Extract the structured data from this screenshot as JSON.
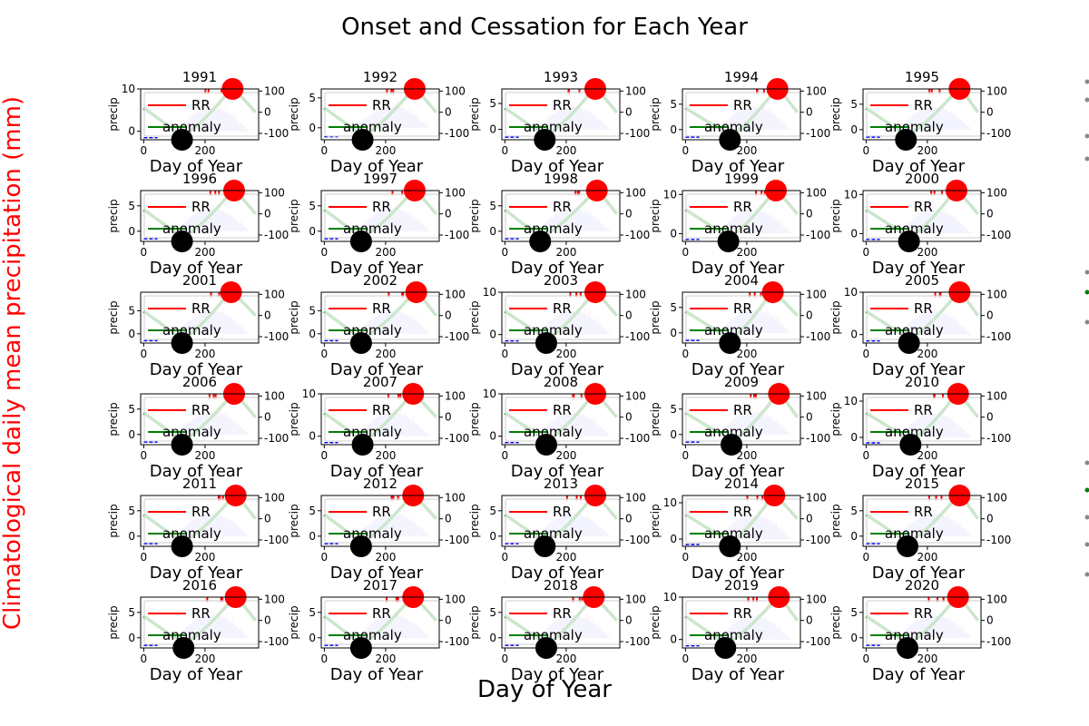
{
  "figure": {
    "title": "Onset and Cessation for Each Year",
    "supxlabel": "Day of Year",
    "supylabel": "Climatological daily mean precipitation (mm)"
  },
  "colors": {
    "title_text": "#000000",
    "ylabel_text": "#ff0000",
    "rr": "#ff0000",
    "rr_fill": "#ffc8c8",
    "climatology_fill": "#c8c8ff",
    "climatology_line": "#0000ff",
    "anomaly": "#008000",
    "onset_marker": "#000000",
    "cessation_marker": "#ff0000"
  },
  "chart_data": {
    "type": "line",
    "layout": {
      "rows": 6,
      "cols": 5
    },
    "legend": {
      "placement": "upper-left",
      "entries": [
        "RR",
        "anomaly"
      ]
    },
    "grid": false,
    "shared": {
      "xlabel": "Day of Year",
      "ylabel_left": "precip",
      "x_ticks": [
        0,
        200
      ],
      "xlim": [
        -10,
        375
      ],
      "y2_ticks": [
        -100,
        0,
        100
      ],
      "y2lim": [
        -130,
        110
      ]
    },
    "panels": [
      {
        "title": "1991",
        "ylim": [
          -2,
          10
        ],
        "y_ticks": [
          0,
          10
        ],
        "onset": 125,
        "cessation": 290
      },
      {
        "title": "1992",
        "ylim": [
          -2,
          6.5
        ],
        "y_ticks": [
          0,
          5
        ],
        "onset": 125,
        "cessation": 295
      },
      {
        "title": "1993",
        "ylim": [
          -2,
          7.8
        ],
        "y_ticks": [
          0,
          5
        ],
        "onset": 130,
        "cessation": 295
      },
      {
        "title": "1994",
        "ylim": [
          -2,
          8
        ],
        "y_ticks": [
          0,
          5
        ],
        "onset": 145,
        "cessation": 300
      },
      {
        "title": "1995",
        "ylim": [
          -2,
          8
        ],
        "y_ticks": [
          0,
          5
        ],
        "onset": 130,
        "cessation": 305
      },
      {
        "title": "1996",
        "ylim": [
          -2,
          8
        ],
        "y_ticks": [
          0,
          5
        ],
        "onset": 125,
        "cessation": 295
      },
      {
        "title": "1997",
        "ylim": [
          -2,
          8
        ],
        "y_ticks": [
          0,
          5
        ],
        "onset": 120,
        "cessation": 295
      },
      {
        "title": "1998",
        "ylim": [
          -2,
          8
        ],
        "y_ticks": [
          0,
          5
        ],
        "onset": 115,
        "cessation": 300
      },
      {
        "title": "1999",
        "ylim": [
          -2,
          11
        ],
        "y_ticks": [
          0,
          10
        ],
        "onset": 140,
        "cessation": 295
      },
      {
        "title": "2000",
        "ylim": [
          -2,
          11
        ],
        "y_ticks": [
          0,
          10
        ],
        "onset": 140,
        "cessation": 295
      },
      {
        "title": "2001",
        "ylim": [
          -2,
          9
        ],
        "y_ticks": [
          0,
          5
        ],
        "onset": 125,
        "cessation": 285
      },
      {
        "title": "2002",
        "ylim": [
          -2,
          9
        ],
        "y_ticks": [
          0,
          5
        ],
        "onset": 120,
        "cessation": 300
      },
      {
        "title": "2003",
        "ylim": [
          -2,
          10
        ],
        "y_ticks": [
          0,
          10
        ],
        "onset": 135,
        "cessation": 295
      },
      {
        "title": "2004",
        "ylim": [
          -2,
          8
        ],
        "y_ticks": [
          0,
          5
        ],
        "onset": 145,
        "cessation": 285
      },
      {
        "title": "2005",
        "ylim": [
          -2,
          10
        ],
        "y_ticks": [
          0,
          10
        ],
        "onset": 140,
        "cessation": 305
      },
      {
        "title": "2006",
        "ylim": [
          -2,
          8
        ],
        "y_ticks": [
          0,
          5
        ],
        "onset": 125,
        "cessation": 295
      },
      {
        "title": "2007",
        "ylim": [
          -2,
          10
        ],
        "y_ticks": [
          0,
          10
        ],
        "onset": 125,
        "cessation": 290
      },
      {
        "title": "2008",
        "ylim": [
          -2,
          10
        ],
        "y_ticks": [
          0,
          10
        ],
        "onset": 135,
        "cessation": 295
      },
      {
        "title": "2009",
        "ylim": [
          -2,
          8
        ],
        "y_ticks": [
          0,
          5
        ],
        "onset": 150,
        "cessation": 305
      },
      {
        "title": "2010",
        "ylim": [
          -2,
          12
        ],
        "y_ticks": [
          0,
          10
        ],
        "onset": 145,
        "cessation": 300
      },
      {
        "title": "2011",
        "ylim": [
          -2,
          8
        ],
        "y_ticks": [
          0,
          5
        ],
        "onset": 125,
        "cessation": 300
      },
      {
        "title": "2012",
        "ylim": [
          -2,
          8
        ],
        "y_ticks": [
          0,
          5
        ],
        "onset": 120,
        "cessation": 290
      },
      {
        "title": "2013",
        "ylim": [
          -2,
          8
        ],
        "y_ticks": [
          0,
          5
        ],
        "onset": 130,
        "cessation": 295
      },
      {
        "title": "2014",
        "ylim": [
          -2,
          12
        ],
        "y_ticks": [
          0,
          10
        ],
        "onset": 145,
        "cessation": 290
      },
      {
        "title": "2015",
        "ylim": [
          -2,
          8
        ],
        "y_ticks": [
          0,
          5
        ],
        "onset": 135,
        "cessation": 305
      },
      {
        "title": "2016",
        "ylim": [
          -2,
          8
        ],
        "y_ticks": [
          0,
          5
        ],
        "onset": 130,
        "cessation": 300
      },
      {
        "title": "2017",
        "ylim": [
          -2,
          8
        ],
        "y_ticks": [
          0,
          5
        ],
        "onset": 120,
        "cessation": 290
      },
      {
        "title": "2018",
        "ylim": [
          -2,
          8
        ],
        "y_ticks": [
          0,
          5
        ],
        "onset": 135,
        "cessation": 290
      },
      {
        "title": "2019",
        "ylim": [
          -2,
          10
        ],
        "y_ticks": [
          0,
          10
        ],
        "onset": 130,
        "cessation": 305
      },
      {
        "title": "2020",
        "ylim": [
          -2,
          8
        ],
        "y_ticks": [
          0,
          5
        ],
        "onset": 135,
        "cessation": 300
      }
    ]
  }
}
